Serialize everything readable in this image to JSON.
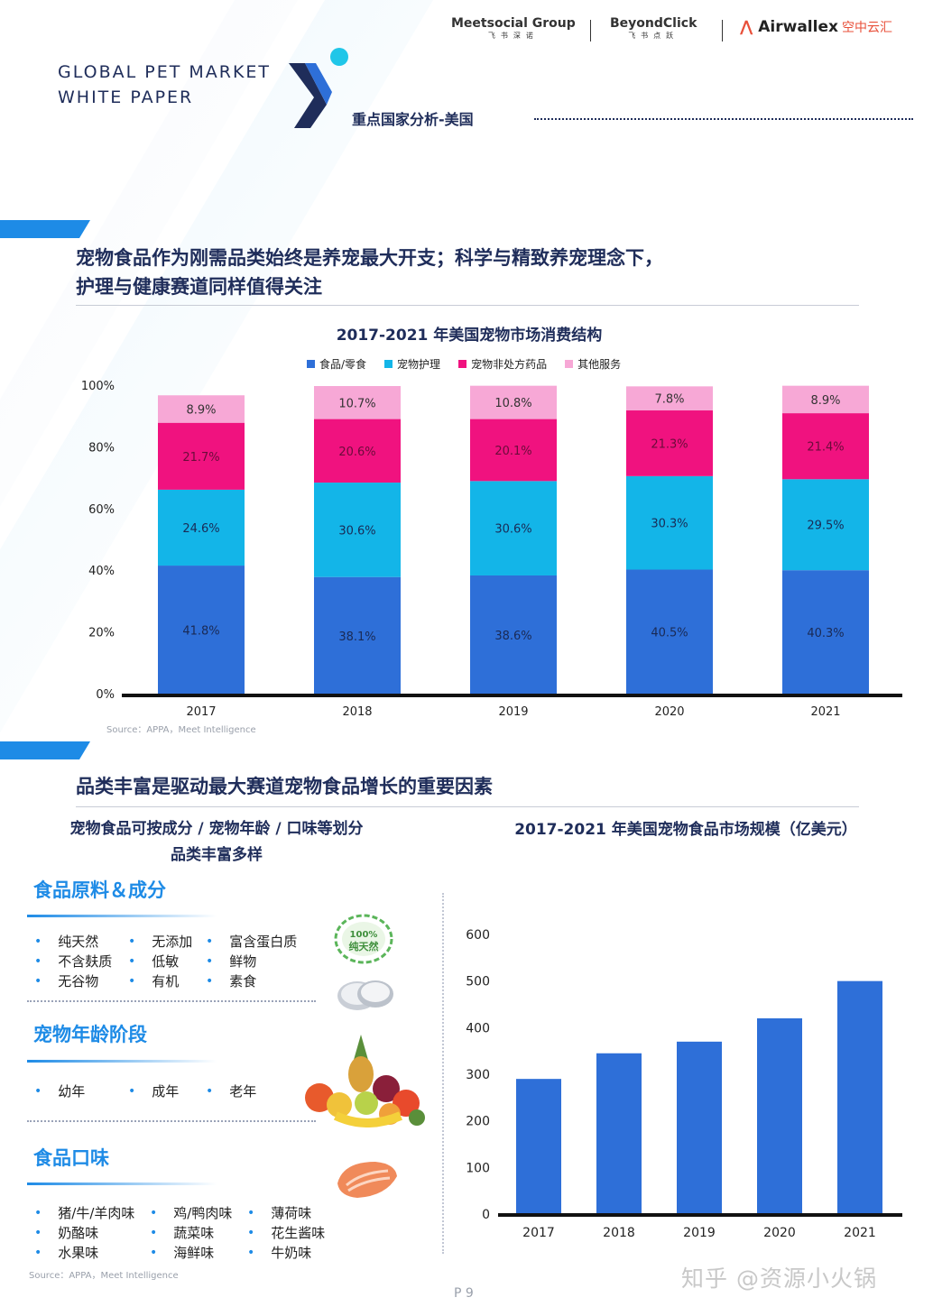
{
  "header": {
    "title": "GLOBAL PET MARKET\nWHITE PAPER",
    "section_tag": "重点国家分析-美国",
    "partners": [
      {
        "main": "Meetsocial Group",
        "sub": "飞书深诺"
      },
      {
        "main": "BeyondClick",
        "sub": "飞书点跃"
      },
      {
        "main": "Airwallex",
        "sub": "空中云汇"
      }
    ]
  },
  "section1": {
    "heading_line1": "宠物食品作为刚需品类始终是养宠最大开支；科学与精致养宠理念下，",
    "heading_line2": "护理与健康赛道同样值得关注"
  },
  "section2": {
    "heading": "品类丰富是驱动最大赛道宠物食品增长的重要因素"
  },
  "left_panel": {
    "title_line1": "宠物食品可按成分 / 宠物年龄 / 口味等划分",
    "title_line2": "品类丰富多样",
    "categories": [
      {
        "title": "食品原料＆成分",
        "items": [
          "纯天然",
          "无添加",
          "富含蛋白质",
          "不含麸质",
          "低敏",
          "鲜物",
          "无谷物",
          "有机",
          "素食"
        ],
        "badge_text": "100% 纯天然"
      },
      {
        "title": "宠物年龄阶段",
        "items": [
          "幼年",
          "成年",
          "老年"
        ]
      },
      {
        "title": "食品口味",
        "items": [
          "猪/牛/羊肉味",
          "鸡/鸭肉味",
          "薄荷味",
          "奶酪味",
          "蔬菜味",
          "花生酱味",
          "水果味",
          "海鲜味",
          "牛奶味"
        ]
      }
    ],
    "source": "Source：APPA，Meet Intelligence"
  },
  "chart1_source": "Source：APPA，Meet Intelligence",
  "page_number": "P 9",
  "watermark": "知乎 @资源小火锅",
  "colors": {
    "navy": "#1f2d5a",
    "food": "#2e6fd8",
    "care": "#13b5e8",
    "drugs": "#f0127f",
    "other": "#f7a8d6",
    "accent": "#1e8be6"
  },
  "chart_data": [
    {
      "type": "bar",
      "stacked": true,
      "title": "2017-2021 年美国宠物市场消费结构",
      "categories": [
        "2017",
        "2018",
        "2019",
        "2020",
        "2021"
      ],
      "series": [
        {
          "name": "食品/零食",
          "values": [
            41.8,
            38.1,
            38.6,
            40.5,
            40.3
          ],
          "labels": [
            "41.8%",
            "38.1%",
            "38.6%",
            "40.5%",
            "40.3%"
          ]
        },
        {
          "name": "宠物护理",
          "values": [
            24.6,
            30.6,
            30.6,
            30.3,
            29.5
          ],
          "labels": [
            "24.6%",
            "30.6%",
            "30.6%",
            "30.3%",
            "29.5%"
          ]
        },
        {
          "name": "宠物非处方药品",
          "values": [
            21.7,
            20.6,
            20.1,
            21.3,
            21.4
          ],
          "labels": [
            "21.7%",
            "20.6%",
            "20.1%",
            "21.3%",
            "21.4%"
          ]
        },
        {
          "name": "其他服务",
          "values": [
            8.9,
            10.7,
            10.8,
            7.8,
            8.9
          ],
          "labels": [
            "8.9%",
            "10.7%",
            "10.8%",
            "7.8%",
            "8.9%"
          ]
        }
      ],
      "yticks": [
        "0%",
        "20%",
        "40%",
        "60%",
        "80%",
        "100%"
      ],
      "ylim": [
        0,
        100
      ],
      "legend_position": "top",
      "grid": false
    },
    {
      "type": "bar",
      "title": "2017-2021 年美国宠物食品市场规模（亿美元）",
      "categories": [
        "2017",
        "2018",
        "2019",
        "2020",
        "2021"
      ],
      "values": [
        290,
        345,
        370,
        420,
        500
      ],
      "yticks": [
        "0",
        "100",
        "200",
        "300",
        "400",
        "500",
        "600"
      ],
      "ylim": [
        0,
        600
      ],
      "grid": false
    }
  ]
}
